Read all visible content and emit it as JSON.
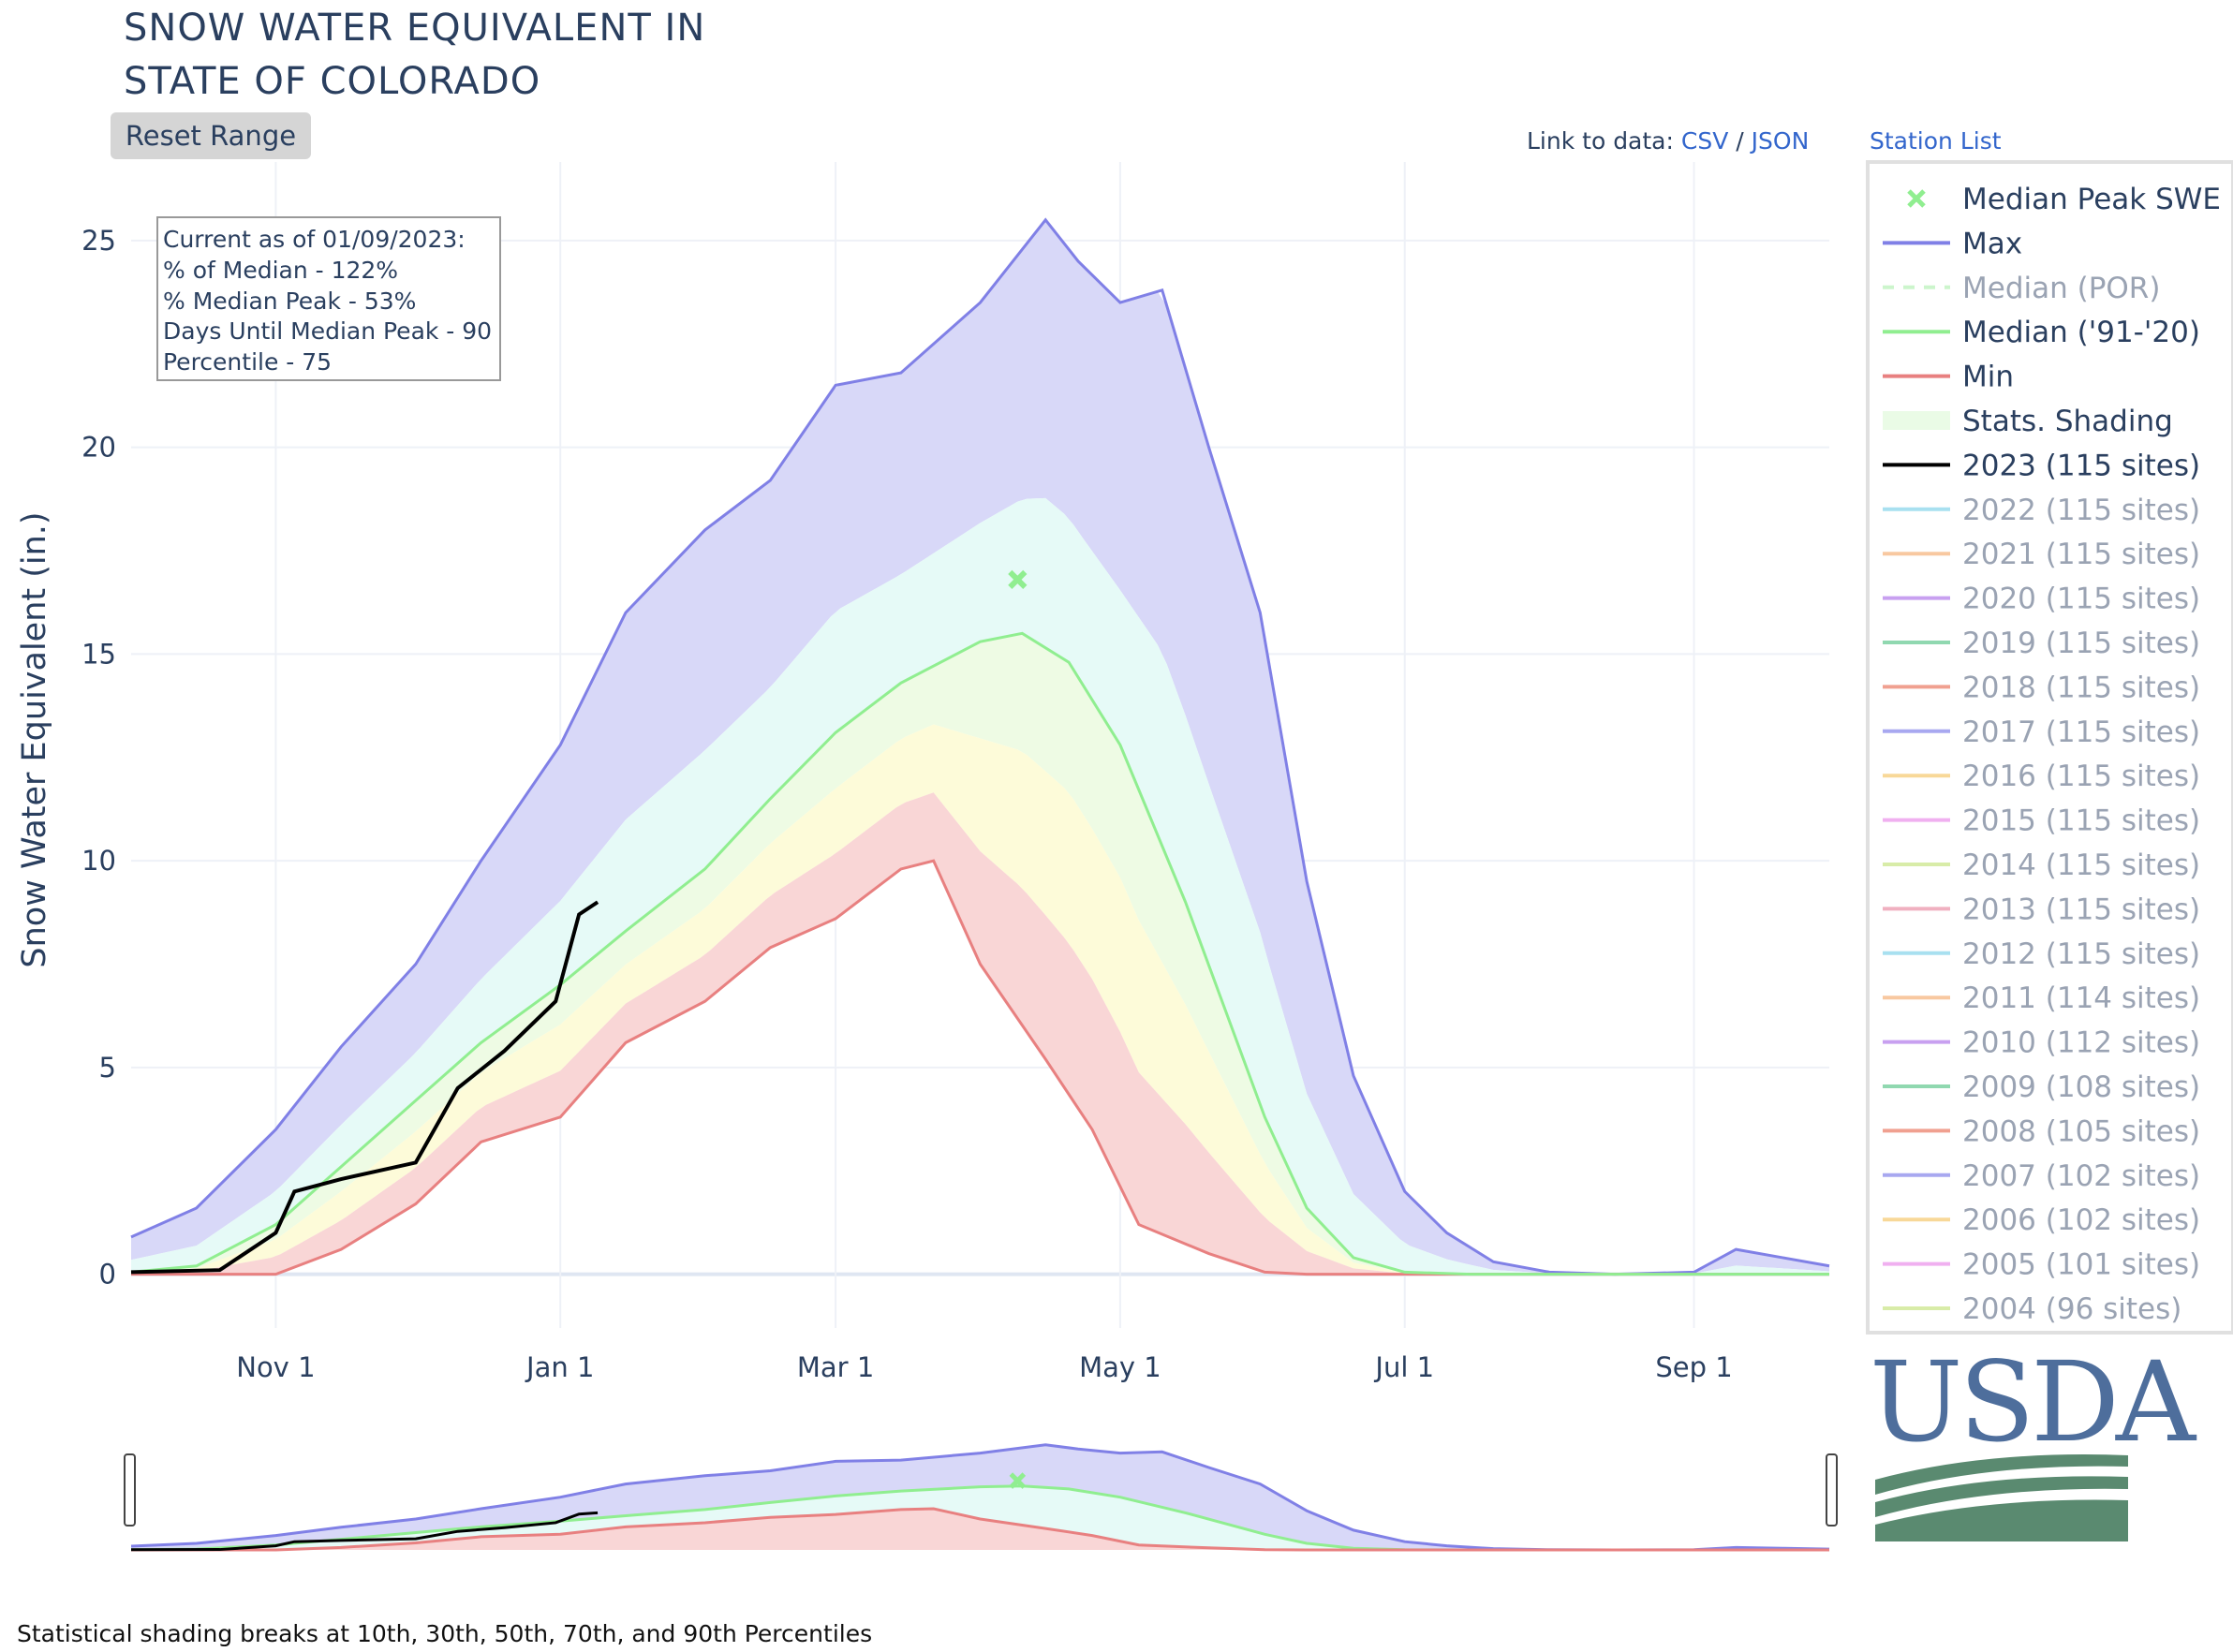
{
  "header": {
    "title_line1": "SNOW WATER EQUIVALENT IN",
    "title_line2": "STATE OF COLORADO",
    "reset_label": "Reset Range",
    "link_prefix": "Link to data:",
    "csv_label": "CSV",
    "separator": "/",
    "json_label": "JSON",
    "station_list_label": "Station List"
  },
  "info_box": {
    "line1": "Current as of 01/09/2023:",
    "line2": "% of Median - 122%",
    "line3": "% Median Peak - 53%",
    "line4": "Days Until Median Peak - 90",
    "line5": "Percentile - 75"
  },
  "footnote": "Statistical shading breaks at 10th, 30th, 50th, 70th, and 90th Percentiles",
  "logo_text": "USDA",
  "chart_data": {
    "type": "area",
    "ylabel": "Snow Water Equivalent (in.)",
    "ylim": [
      -1.3,
      26.9
    ],
    "yticks": [
      0,
      5,
      10,
      15,
      20,
      25
    ],
    "x_range": [
      "2022-10-01",
      "2023-09-30"
    ],
    "xticks": [
      {
        "label": "Nov  1",
        "date": "2022-11-01"
      },
      {
        "label": "Jan  1",
        "date": "2023-01-01"
      },
      {
        "label": "Mar  1",
        "date": "2023-03-01"
      },
      {
        "label": "May  1",
        "date": "2023-05-01"
      },
      {
        "label": "Jul  1",
        "date": "2023-07-01"
      },
      {
        "label": "Sep  1",
        "date": "2023-09-01"
      }
    ],
    "grid": true,
    "legend_position": "right",
    "median_peak": {
      "date": "2023-04-09",
      "value": 16.8
    },
    "series": [
      {
        "name": "Max",
        "color": "#8080e6",
        "x": [
          "2022-10-01",
          "2022-10-15",
          "2022-11-01",
          "2022-11-15",
          "2022-12-01",
          "2022-12-15",
          "2023-01-01",
          "2023-01-15",
          "2023-02-01",
          "2023-02-15",
          "2023-03-01",
          "2023-03-15",
          "2023-04-01",
          "2023-04-15",
          "2023-04-22",
          "2023-05-01",
          "2023-05-10",
          "2023-05-20",
          "2023-05-31",
          "2023-06-10",
          "2023-06-20",
          "2023-07-01",
          "2023-07-10",
          "2023-07-20",
          "2023-08-01",
          "2023-08-15",
          "2023-09-01",
          "2023-09-10",
          "2023-09-20",
          "2023-09-30"
        ],
        "values": [
          0.9,
          1.6,
          3.5,
          5.5,
          7.5,
          10,
          12.8,
          16,
          18,
          19.2,
          21.5,
          21.8,
          23.5,
          25.5,
          24.5,
          23.5,
          23.8,
          20,
          16,
          9.5,
          4.8,
          2.0,
          1.0,
          0.3,
          0.05,
          0.0,
          0.05,
          0.6,
          0.4,
          0.2
        ]
      },
      {
        "name": "Median ('91-'20)",
        "color": "#90ee90",
        "x": [
          "2022-10-01",
          "2022-10-15",
          "2022-11-01",
          "2022-11-15",
          "2022-12-01",
          "2022-12-15",
          "2023-01-01",
          "2023-01-15",
          "2023-02-01",
          "2023-02-15",
          "2023-03-01",
          "2023-03-15",
          "2023-04-01",
          "2023-04-10",
          "2023-04-20",
          "2023-05-01",
          "2023-05-15",
          "2023-06-01",
          "2023-06-10",
          "2023-06-20",
          "2023-07-01",
          "2023-07-15",
          "2023-08-01",
          "2023-09-30"
        ],
        "values": [
          0.05,
          0.2,
          1.2,
          2.6,
          4.2,
          5.6,
          7.0,
          8.3,
          9.8,
          11.5,
          13.1,
          14.3,
          15.3,
          15.5,
          14.8,
          12.8,
          9.0,
          3.8,
          1.6,
          0.4,
          0.05,
          0.0,
          0.0,
          0.0
        ]
      },
      {
        "name": "Min",
        "color": "#e88080",
        "x": [
          "2022-10-01",
          "2022-11-01",
          "2022-11-15",
          "2022-12-01",
          "2022-12-15",
          "2023-01-01",
          "2023-01-15",
          "2023-02-01",
          "2023-02-15",
          "2023-03-01",
          "2023-03-15",
          "2023-03-22",
          "2023-04-01",
          "2023-04-15",
          "2023-04-25",
          "2023-05-05",
          "2023-05-20",
          "2023-06-01",
          "2023-06-10",
          "2023-09-30"
        ],
        "values": [
          0.0,
          0.0,
          0.6,
          1.7,
          3.2,
          3.8,
          5.6,
          6.6,
          7.9,
          8.6,
          9.8,
          10.0,
          7.5,
          5.2,
          3.5,
          1.2,
          0.5,
          0.05,
          0.0,
          0.0
        ]
      },
      {
        "name": "2023 (115 sites)",
        "color": "#000000",
        "x": [
          "2022-10-01",
          "2022-10-20",
          "2022-11-01",
          "2022-11-05",
          "2022-11-15",
          "2022-12-01",
          "2022-12-10",
          "2022-12-20",
          "2022-12-31",
          "2023-01-05",
          "2023-01-09"
        ],
        "values": [
          0.05,
          0.1,
          1.0,
          2.0,
          2.3,
          2.7,
          4.5,
          5.4,
          6.6,
          8.7,
          9.0
        ]
      }
    ],
    "legend": [
      {
        "label": "Median Peak SWE",
        "color": "#90ee90",
        "symbol": "x",
        "active": true
      },
      {
        "label": "Max",
        "color": "#8080e6",
        "symbol": "line",
        "active": true
      },
      {
        "label": "Median (POR)",
        "color": "#ccf5cc",
        "symbol": "dash",
        "active": false
      },
      {
        "label": "Median ('91-'20)",
        "color": "#90ee90",
        "symbol": "line",
        "active": true
      },
      {
        "label": "Min",
        "color": "#e88080",
        "symbol": "line",
        "active": true
      },
      {
        "label": "Stats. Shading",
        "color": "#eafbe6",
        "symbol": "band",
        "active": true
      },
      {
        "label": "2023 (115 sites)",
        "color": "#000000",
        "symbol": "line",
        "active": true
      },
      {
        "label": "2022 (115 sites)",
        "color": "#a8e0f0",
        "symbol": "line",
        "active": false
      },
      {
        "label": "2021 (115 sites)",
        "color": "#f8c8a0",
        "symbol": "line",
        "active": false
      },
      {
        "label": "2020 (115 sites)",
        "color": "#c8a0f0",
        "symbol": "line",
        "active": false
      },
      {
        "label": "2019 (115 sites)",
        "color": "#90d8b0",
        "symbol": "line",
        "active": false
      },
      {
        "label": "2018 (115 sites)",
        "color": "#f0a090",
        "symbol": "line",
        "active": false
      },
      {
        "label": "2017 (115 sites)",
        "color": "#a8a8f0",
        "symbol": "line",
        "active": false
      },
      {
        "label": "2016 (115 sites)",
        "color": "#f8d898",
        "symbol": "line",
        "active": false
      },
      {
        "label": "2015 (115 sites)",
        "color": "#f0b0f0",
        "symbol": "line",
        "active": false
      },
      {
        "label": "2014 (115 sites)",
        "color": "#d8eca8",
        "symbol": "line",
        "active": false
      },
      {
        "label": "2013 (115 sites)",
        "color": "#f0b0c0",
        "symbol": "line",
        "active": false
      },
      {
        "label": "2012 (115 sites)",
        "color": "#a8e0f0",
        "symbol": "line",
        "active": false
      },
      {
        "label": "2011 (114 sites)",
        "color": "#f8c8a0",
        "symbol": "line",
        "active": false
      },
      {
        "label": "2010 (112 sites)",
        "color": "#c8a0f0",
        "symbol": "line",
        "active": false
      },
      {
        "label": "2009 (108 sites)",
        "color": "#90d8b0",
        "symbol": "line",
        "active": false
      },
      {
        "label": "2008 (105 sites)",
        "color": "#f0a090",
        "symbol": "line",
        "active": false
      },
      {
        "label": "2007 (102 sites)",
        "color": "#a8a8f0",
        "symbol": "line",
        "active": false
      },
      {
        "label": "2006 (102 sites)",
        "color": "#f8d898",
        "symbol": "line",
        "active": false
      },
      {
        "label": "2005 (101 sites)",
        "color": "#f0b0f0",
        "symbol": "line",
        "active": false
      },
      {
        "label": "2004 (96 sites)",
        "color": "#d8eca8",
        "symbol": "line",
        "active": false
      }
    ]
  }
}
